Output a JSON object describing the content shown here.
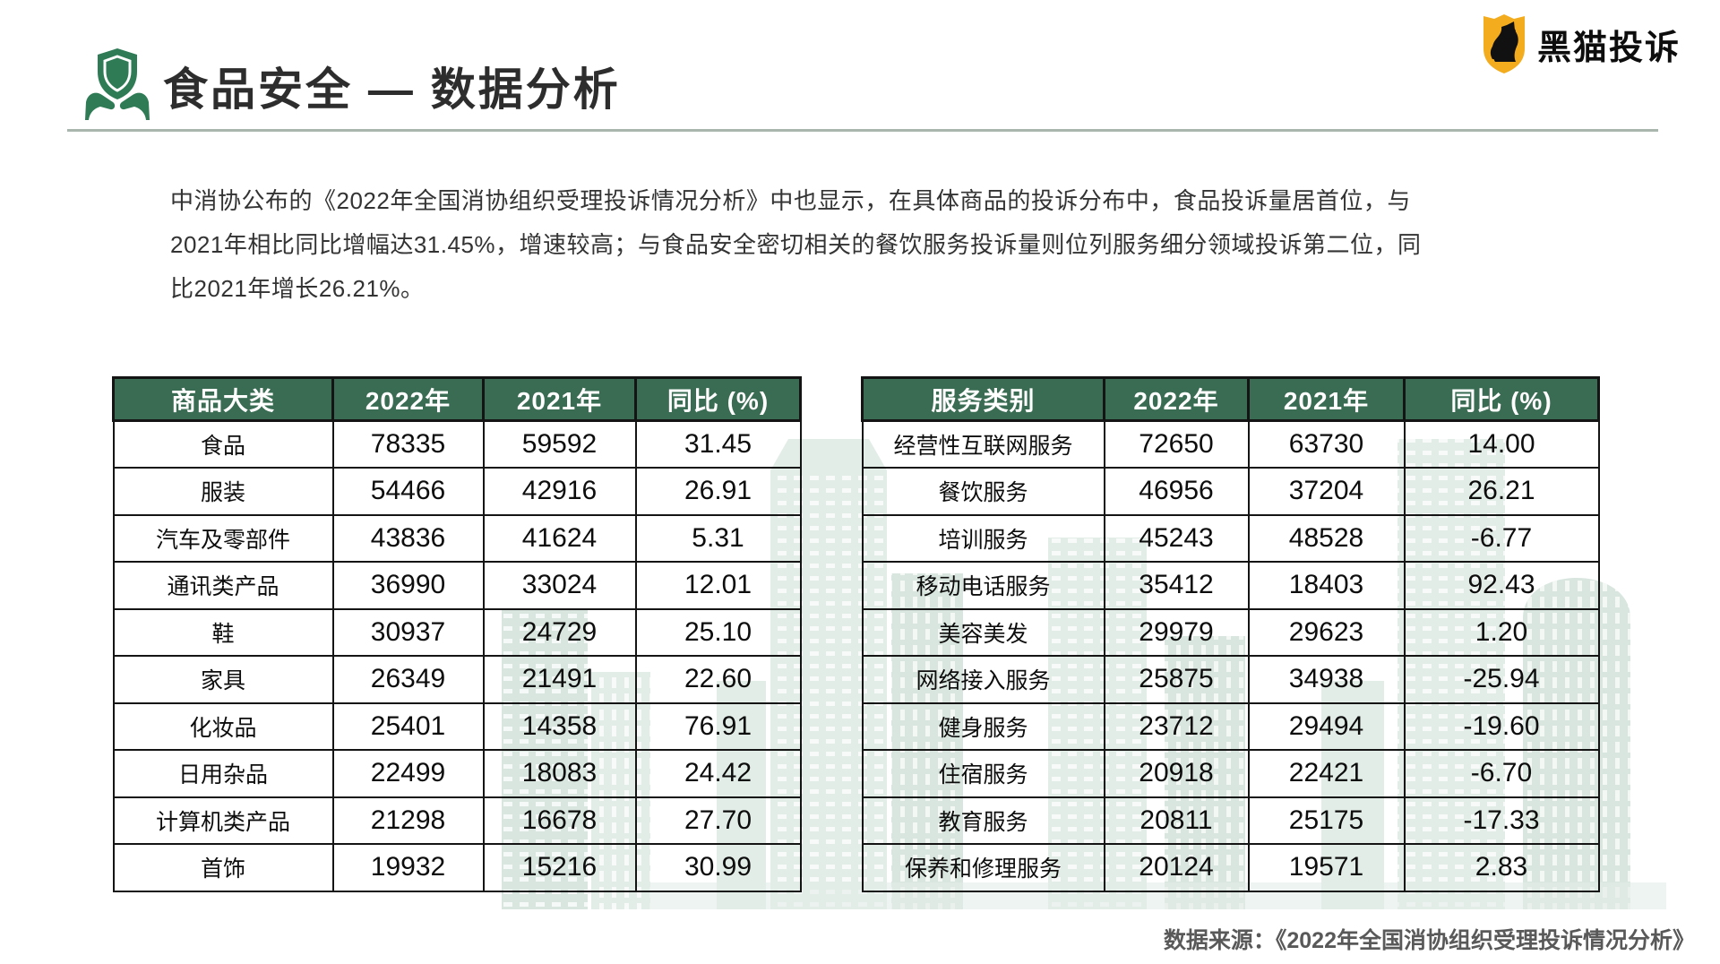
{
  "header": {
    "title": "食品安全 — 数据分析",
    "logo_text": "黑猫投诉"
  },
  "intro": {
    "lines": [
      "中消协公布的《2022年全国消协组织受理投诉情况分析》中也显示，在具体商品的投诉分布中，食品投诉量居首位，与",
      "2021年相比同比增幅达31.45%，增速较高；与食品安全密切相关的餐饮服务投诉量则位列服务细分领域投诉第二位，同",
      "比2021年增长26.21%。"
    ]
  },
  "tables": {
    "products": {
      "headers": [
        "商品大类",
        "2022年",
        "2021年",
        "同比 (%)"
      ],
      "rows": [
        [
          "食品",
          "78335",
          "59592",
          "31.45"
        ],
        [
          "服装",
          "54466",
          "42916",
          "26.91"
        ],
        [
          "汽车及零部件",
          "43836",
          "41624",
          "5.31"
        ],
        [
          "通讯类产品",
          "36990",
          "33024",
          "12.01"
        ],
        [
          "鞋",
          "30937",
          "24729",
          "25.10"
        ],
        [
          "家具",
          "26349",
          "21491",
          "22.60"
        ],
        [
          "化妆品",
          "25401",
          "14358",
          "76.91"
        ],
        [
          "日用杂品",
          "22499",
          "18083",
          "24.42"
        ],
        [
          "计算机类产品",
          "21298",
          "16678",
          "27.70"
        ],
        [
          "首饰",
          "19932",
          "15216",
          "30.99"
        ]
      ]
    },
    "services": {
      "headers": [
        "服务类别",
        "2022年",
        "2021年",
        "同比 (%)"
      ],
      "rows": [
        [
          "经营性互联网服务",
          "72650",
          "63730",
          "14.00"
        ],
        [
          "餐饮服务",
          "46956",
          "37204",
          "26.21"
        ],
        [
          "培训服务",
          "45243",
          "48528",
          "-6.77"
        ],
        [
          "移动电话服务",
          "35412",
          "18403",
          "92.43"
        ],
        [
          "美容美发",
          "29979",
          "29623",
          "1.20"
        ],
        [
          "网络接入服务",
          "25875",
          "34938",
          "-25.94"
        ],
        [
          "健身服务",
          "23712",
          "29494",
          "-19.60"
        ],
        [
          "住宿服务",
          "20918",
          "22421",
          "-6.70"
        ],
        [
          "教育服务",
          "20811",
          "25175",
          "-17.33"
        ],
        [
          "保养和修理服务",
          "20124",
          "19571",
          "2.83"
        ]
      ]
    }
  },
  "footer": {
    "source": "数据来源：《2022年全国消协组织受理投诉情况分析》"
  },
  "colors": {
    "header_green": "#3A6B53",
    "icon_green": "#2E7B55",
    "logo_yellow": "#F2AC1E",
    "title_text": "#2D2D2D",
    "watermark_green": "#E3EDE7",
    "divider_gray": "#A9B6AE",
    "source_gray": "#595959"
  }
}
